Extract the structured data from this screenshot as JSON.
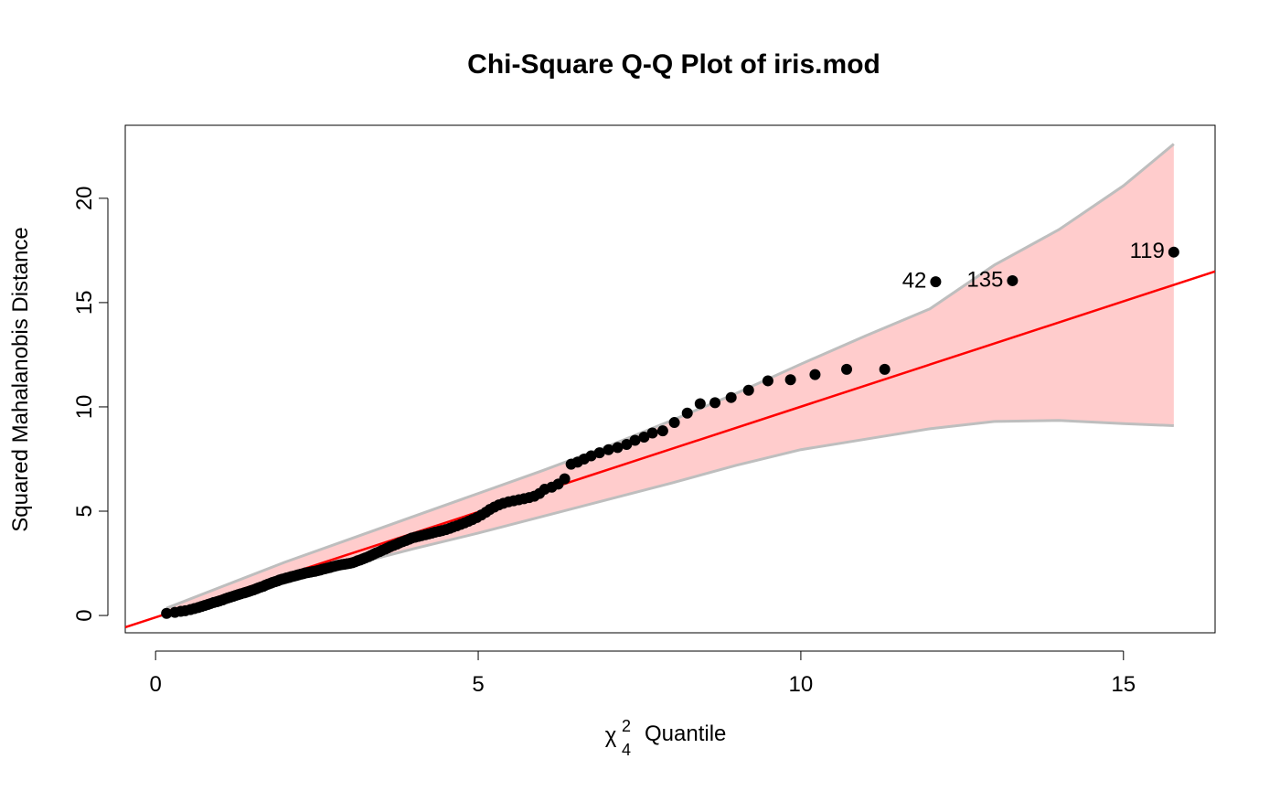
{
  "chart_data": {
    "type": "scatter",
    "title": "Chi-Square Q-Q Plot of iris.mod",
    "ylabel": "Squared Mahalanobis Distance",
    "xlabel": {
      "symbol": "χ",
      "superscript": "2",
      "subscript": "4",
      "text": "Quantile"
    },
    "xlim": [
      -0.47,
      16.42
    ],
    "ylim": [
      -0.83,
      23.5
    ],
    "xticks": [
      0,
      5,
      10,
      15
    ],
    "yticks": [
      0,
      5,
      10,
      15,
      20
    ],
    "x": [
      0.17,
      0.3,
      0.39,
      0.46,
      0.54,
      0.6,
      0.66,
      0.71,
      0.76,
      0.81,
      0.85,
      0.9,
      0.95,
      0.99,
      1.04,
      1.08,
      1.12,
      1.16,
      1.2,
      1.24,
      1.28,
      1.32,
      1.37,
      1.4,
      1.44,
      1.48,
      1.52,
      1.56,
      1.59,
      1.63,
      1.67,
      1.7,
      1.74,
      1.78,
      1.81,
      1.85,
      1.89,
      1.92,
      1.96,
      2.0,
      2.03,
      2.07,
      2.1,
      2.14,
      2.18,
      2.21,
      2.25,
      2.29,
      2.32,
      2.36,
      2.4,
      2.43,
      2.47,
      2.51,
      2.55,
      2.58,
      2.62,
      2.66,
      2.7,
      2.73,
      2.77,
      2.81,
      2.85,
      2.89,
      2.93,
      2.97,
      3.01,
      3.05,
      3.09,
      3.13,
      3.17,
      3.21,
      3.25,
      3.3,
      3.34,
      3.38,
      3.42,
      3.47,
      3.51,
      3.56,
      3.6,
      3.64,
      3.69,
      3.74,
      3.78,
      3.83,
      3.88,
      3.93,
      3.97,
      4.02,
      4.07,
      4.12,
      4.18,
      4.23,
      4.28,
      4.33,
      4.39,
      4.44,
      4.5,
      4.56,
      4.61,
      4.67,
      4.73,
      4.79,
      4.85,
      4.91,
      4.98,
      5.05,
      5.12,
      5.18,
      5.25,
      5.32,
      5.39,
      5.47,
      5.55,
      5.63,
      5.71,
      5.79,
      5.87,
      5.95,
      6.03,
      6.14,
      6.24,
      6.34,
      6.44,
      6.54,
      6.64,
      6.75,
      6.88,
      7.02,
      7.16,
      7.3,
      7.43,
      7.57,
      7.7,
      7.86,
      8.04,
      8.24,
      8.44,
      8.67,
      8.92,
      9.19,
      9.49,
      9.84,
      10.22,
      10.71,
      11.3,
      12.09,
      13.28,
      15.78
    ],
    "series": [
      {
        "color": "#000000",
        "values": [
          0.1,
          0.15,
          0.2,
          0.23,
          0.28,
          0.33,
          0.38,
          0.43,
          0.48,
          0.53,
          0.57,
          0.62,
          0.66,
          0.7,
          0.75,
          0.8,
          0.84,
          0.88,
          0.92,
          0.96,
          1.0,
          1.04,
          1.08,
          1.11,
          1.15,
          1.19,
          1.23,
          1.28,
          1.32,
          1.36,
          1.4,
          1.45,
          1.5,
          1.54,
          1.58,
          1.62,
          1.66,
          1.7,
          1.74,
          1.77,
          1.8,
          1.83,
          1.86,
          1.89,
          1.92,
          1.95,
          1.98,
          2.01,
          2.04,
          2.06,
          2.08,
          2.1,
          2.12,
          2.15,
          2.18,
          2.21,
          2.24,
          2.27,
          2.3,
          2.33,
          2.36,
          2.39,
          2.42,
          2.44,
          2.46,
          2.48,
          2.5,
          2.53,
          2.57,
          2.62,
          2.66,
          2.71,
          2.76,
          2.82,
          2.88,
          2.94,
          3.0,
          3.06,
          3.12,
          3.18,
          3.24,
          3.3,
          3.36,
          3.42,
          3.48,
          3.54,
          3.6,
          3.66,
          3.71,
          3.75,
          3.79,
          3.83,
          3.87,
          3.91,
          3.95,
          3.99,
          4.03,
          4.07,
          4.12,
          4.18,
          4.24,
          4.3,
          4.37,
          4.44,
          4.52,
          4.6,
          4.7,
          4.82,
          4.95,
          5.08,
          5.2,
          5.3,
          5.38,
          5.45,
          5.5,
          5.55,
          5.6,
          5.65,
          5.72,
          5.85,
          6.05,
          6.15,
          6.3,
          6.55,
          7.25,
          7.35,
          7.5,
          7.65,
          7.8,
          7.95,
          8.05,
          8.2,
          8.4,
          8.55,
          8.75,
          8.85,
          9.25,
          9.7,
          10.15,
          10.2,
          10.45,
          10.8,
          11.25,
          11.3,
          11.55,
          11.8,
          11.8,
          16.0,
          16.05,
          17.42
        ],
        "labels": [
          null,
          null,
          null,
          null,
          null,
          null,
          null,
          null,
          null,
          null,
          null,
          null,
          null,
          null,
          null,
          null,
          null,
          null,
          null,
          null,
          null,
          null,
          null,
          null,
          null,
          null,
          null,
          null,
          null,
          null,
          null,
          null,
          null,
          null,
          null,
          null,
          null,
          null,
          null,
          null,
          null,
          null,
          null,
          null,
          null,
          null,
          null,
          null,
          null,
          null,
          null,
          null,
          null,
          null,
          null,
          null,
          null,
          null,
          null,
          null,
          null,
          null,
          null,
          null,
          null,
          null,
          null,
          null,
          null,
          null,
          null,
          null,
          null,
          null,
          null,
          null,
          null,
          null,
          null,
          null,
          null,
          null,
          null,
          null,
          null,
          null,
          null,
          null,
          null,
          null,
          null,
          null,
          null,
          null,
          null,
          null,
          null,
          null,
          null,
          null,
          null,
          null,
          null,
          null,
          null,
          null,
          null,
          null,
          null,
          null,
          null,
          null,
          null,
          null,
          null,
          null,
          null,
          null,
          null,
          null,
          null,
          null,
          null,
          null,
          null,
          null,
          null,
          null,
          null,
          null,
          null,
          null,
          null,
          null,
          null,
          null,
          null,
          null,
          null,
          null,
          null,
          null,
          null,
          null,
          null,
          null,
          null,
          "42",
          "135",
          "119"
        ]
      }
    ],
    "reference_line": {
      "intercept": -0.09,
      "slope": 1.01,
      "color": "#ff0000"
    },
    "band": {
      "fill": "#ffcccc",
      "edge": "#bebebe",
      "x": [
        0.17,
        1,
        2,
        3,
        4,
        5,
        6,
        7,
        8,
        9,
        10,
        11,
        12,
        13,
        14,
        15,
        15.78
      ],
      "upper": [
        0.35,
        1.35,
        2.55,
        3.65,
        4.75,
        5.85,
        6.95,
        8.1,
        9.35,
        10.65,
        12.05,
        13.4,
        14.7,
        16.8,
        18.5,
        20.6,
        22.6
      ],
      "lower": [
        -0.1,
        0.75,
        1.55,
        2.4,
        3.2,
        3.95,
        4.75,
        5.55,
        6.35,
        7.2,
        7.95,
        8.45,
        8.95,
        9.3,
        9.35,
        9.2,
        9.1
      ]
    }
  }
}
